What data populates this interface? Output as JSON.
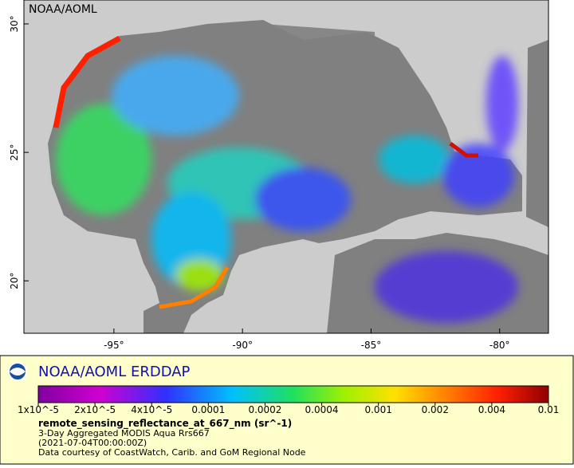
{
  "map": {
    "watermark": "NOAA/AOML",
    "lonlim": [
      -98.5,
      -78.1
    ],
    "latlim": [
      17.96,
      30.93
    ],
    "lon_ticks": [
      {
        "value": -95,
        "label": "-95°"
      },
      {
        "value": -90,
        "label": "-90°"
      },
      {
        "value": -85,
        "label": "-85°"
      },
      {
        "value": -80,
        "label": "-80°"
      }
    ],
    "lat_ticks": [
      {
        "value": 20,
        "label": "20°"
      },
      {
        "value": 25,
        "label": "25°"
      },
      {
        "value": 30,
        "label": "30°"
      }
    ],
    "logo_title": "NOAA/AOML ERDDAP",
    "colorbar": {
      "ticks": [
        {
          "value": 1e-05,
          "label": "1x10^-5"
        },
        {
          "value": 2e-05,
          "label": "2x10^-5"
        },
        {
          "value": 4e-05,
          "label": "4x10^-5"
        },
        {
          "value": 0.0001,
          "label": "0.0001"
        },
        {
          "value": 0.0002,
          "label": "0.0002"
        },
        {
          "value": 0.0004,
          "label": "0.0004"
        },
        {
          "value": 0.001,
          "label": "0.001"
        },
        {
          "value": 0.002,
          "label": "0.002"
        },
        {
          "value": 0.004,
          "label": "0.004"
        },
        {
          "value": 0.01,
          "label": "0.01"
        }
      ]
    },
    "variable": "remote_sensing_reflectance_at_667_nm (sr^-1)",
    "lines": [
      "3-Day Aggregated MODIS Aqua Rrs667",
      "(2021-07-04T00:00:00Z)",
      "Data courtesy of CoastWatch, Carib. and GoM Regional Node"
    ]
  }
}
